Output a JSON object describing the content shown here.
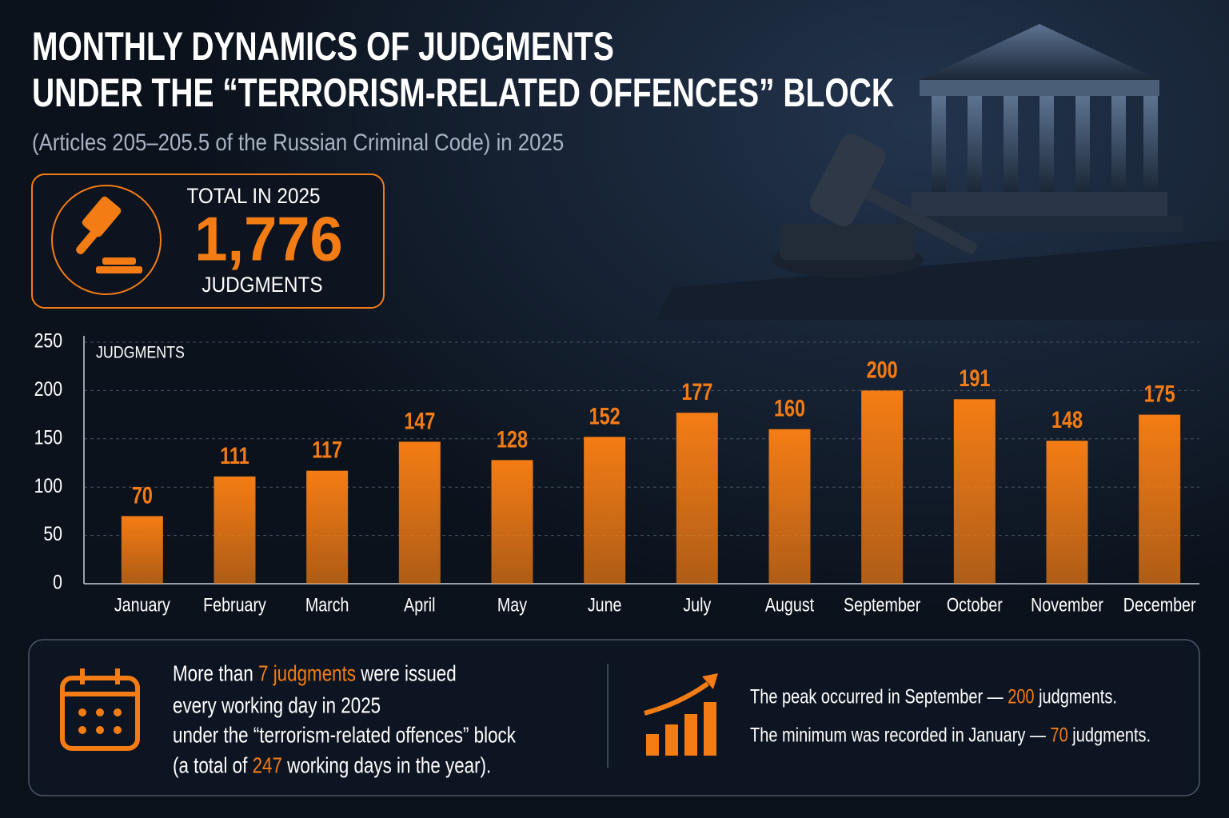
{
  "header": {
    "title": [
      "MONTHLY DYNAMICS OF JUDGMENTS",
      "UNDER THE “TERRORISM-RELATED OFFENCES” BLOCK"
    ],
    "subtitle": "(Articles 205–205.5 of the Russian Criminal Code) in 2025"
  },
  "total": {
    "label": "TOTAL IN 2025",
    "value": "1,776",
    "unit": "JUDGMENTS"
  },
  "chart_data": {
    "type": "bar",
    "y_label": "JUDGMENTS",
    "categories": [
      "January",
      "February",
      "March",
      "April",
      "May",
      "June",
      "July",
      "August",
      "September",
      "October",
      "November",
      "December"
    ],
    "values": [
      70,
      111,
      117,
      147,
      128,
      152,
      177,
      160,
      200,
      191,
      148,
      175
    ],
    "color": "#f47c14",
    "ylim": [
      0,
      250
    ],
    "yticks": [
      0,
      50,
      100,
      150,
      200,
      250
    ],
    "grid": true
  },
  "footer": {
    "left": [
      [
        {
          "text": "More than "
        },
        {
          "text": "7 judgments",
          "accent": true
        },
        {
          "text": " were issued"
        }
      ],
      [
        {
          "text": "every working day in 2025"
        }
      ],
      [
        {
          "text": "under the “terrorism-related offences” block"
        }
      ],
      [
        {
          "text": "(a total of "
        },
        {
          "text": "247",
          "accent": true
        },
        {
          "text": " working days in the year)."
        }
      ]
    ],
    "right": [
      [
        {
          "text": "The peak occurred in September — "
        },
        {
          "text": "200",
          "accent": true
        },
        {
          "text": " judgments."
        }
      ],
      [
        {
          "text": "The minimum was recorded in January — "
        },
        {
          "text": "70",
          "accent": true
        },
        {
          "text": " judgments."
        }
      ]
    ]
  }
}
